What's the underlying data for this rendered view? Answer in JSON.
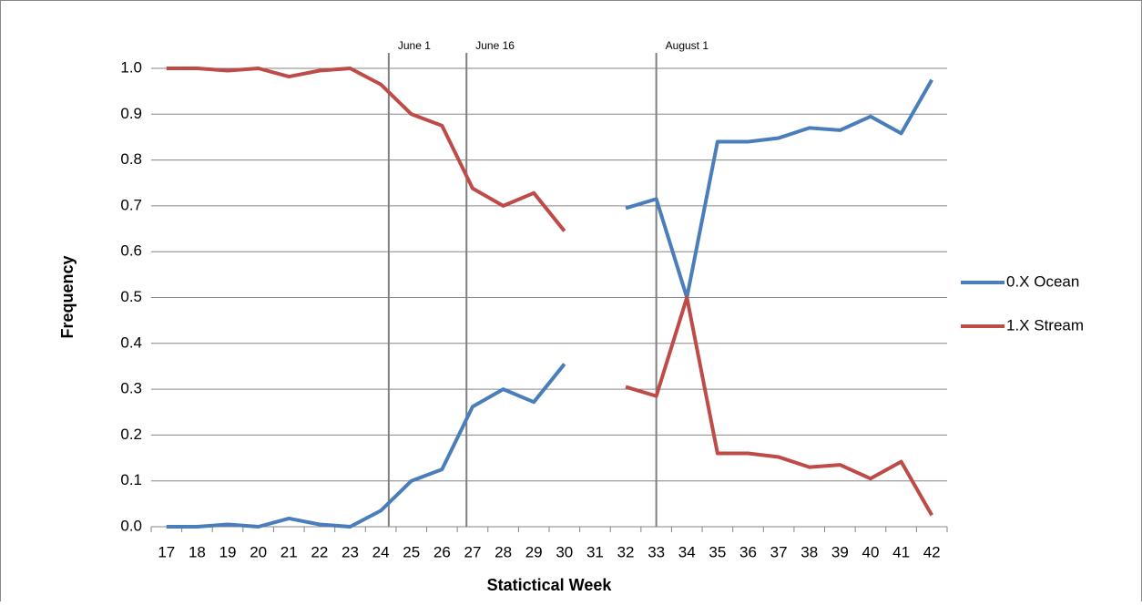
{
  "chart_data": {
    "type": "line",
    "categories": [
      "17",
      "18",
      "19",
      "20",
      "21",
      "22",
      "23",
      "24",
      "25",
      "26",
      "27",
      "28",
      "29",
      "30",
      "31",
      "32",
      "33",
      "34",
      "35",
      "36",
      "37",
      "38",
      "39",
      "40",
      "41",
      "42"
    ],
    "series": [
      {
        "name": "0.X Ocean",
        "color": "#4a7ebb",
        "values": [
          0,
          0,
          0.005,
          0,
          0.018,
          0.005,
          0,
          0.035,
          0.1,
          0.125,
          0.262,
          0.3,
          0.272,
          0.355,
          null,
          0.695,
          0.715,
          0.5,
          0.84,
          0.84,
          0.848,
          0.87,
          0.865,
          0.895,
          0.858,
          0.975
        ]
      },
      {
        "name": "1.X Stream",
        "color": "#be4b48",
        "values": [
          1,
          1,
          0.995,
          1,
          0.982,
          0.995,
          1,
          0.965,
          0.9,
          0.875,
          0.738,
          0.7,
          0.728,
          0.645,
          null,
          0.305,
          0.285,
          0.5,
          0.16,
          0.16,
          0.152,
          0.13,
          0.135,
          0.105,
          0.142,
          0.025
        ]
      }
    ],
    "ylim": [
      0,
      1
    ],
    "yticks": [
      {
        "value": 0,
        "label": "0.0"
      },
      0.1,
      0.2,
      0.3,
      0.4,
      0.5,
      0.6,
      0.7,
      0.8,
      0.9,
      {
        "value": 1,
        "label": "1.0"
      }
    ],
    "grid": true,
    "xlabel": "Statictical Week",
    "ylabel": "Frequency",
    "legend": "right",
    "annotations": [
      {
        "label": "June 1",
        "x": 24.26
      },
      {
        "label": "June 16",
        "x": 26.8
      },
      {
        "label": "August 1",
        "x": 33
      }
    ]
  }
}
